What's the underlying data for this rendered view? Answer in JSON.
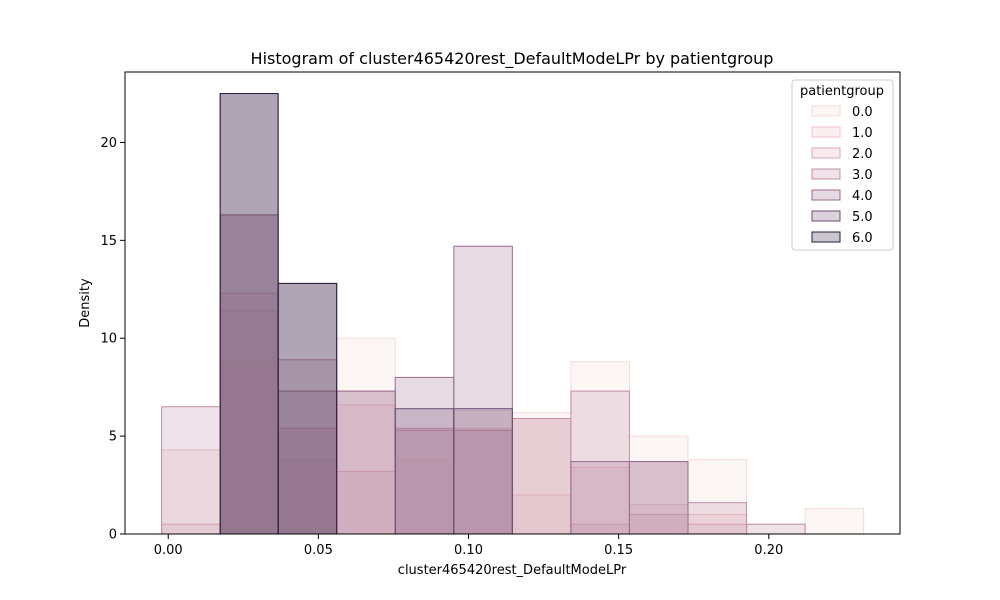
{
  "chart_data": {
    "type": "bar",
    "title": "Histogram of cluster465420rest_DefaultModeLPr by patientgroup",
    "xlabel": "cluster465420rest_DefaultModeLPr",
    "ylabel": "Density",
    "xlim": [
      -0.0144,
      0.2437
    ],
    "ylim": [
      0,
      23.6
    ],
    "xticks": [
      0.0,
      0.05,
      0.1,
      0.15,
      0.2
    ],
    "xtick_labels": [
      "0.00",
      "0.05",
      "0.10",
      "0.15",
      "0.20"
    ],
    "yticks": [
      0,
      5,
      10,
      15,
      20
    ],
    "ytick_labels": [
      "0",
      "5",
      "10",
      "15",
      "20"
    ],
    "legend": {
      "title": "patientgroup",
      "placement": "top-right"
    },
    "grid": false,
    "series": [
      {
        "name": "0.0",
        "color": "#f3dcd8",
        "bins": [
          [
            0.0173,
            0.0366,
            8.8
          ],
          [
            0.0366,
            0.0561,
            3.8
          ],
          [
            0.0561,
            0.0756,
            10.0
          ],
          [
            0.0756,
            0.0951,
            3.8
          ],
          [
            0.0951,
            0.1146,
            6.3
          ],
          [
            0.1146,
            0.1341,
            6.2
          ],
          [
            0.1341,
            0.1536,
            8.8
          ],
          [
            0.1536,
            0.1731,
            5.0
          ],
          [
            0.1731,
            0.1926,
            3.8
          ],
          [
            0.2121,
            0.2316,
            1.3
          ]
        ]
      },
      {
        "name": "1.0",
        "color": "#ecc5c6",
        "bins": [
          [
            -0.0022,
            0.0173,
            4.3
          ],
          [
            0.0173,
            0.0366,
            11.4
          ],
          [
            0.0366,
            0.0561,
            5.4
          ],
          [
            0.0561,
            0.0756,
            6.6
          ],
          [
            0.0756,
            0.0951,
            5.4
          ],
          [
            0.0951,
            0.1146,
            5.4
          ],
          [
            0.1146,
            0.1341,
            2.0
          ],
          [
            0.1341,
            0.1536,
            3.4
          ],
          [
            0.1536,
            0.1731,
            1.5
          ],
          [
            0.1731,
            0.1926,
            1.0
          ]
        ]
      },
      {
        "name": "2.0",
        "color": "#dcaab8",
        "bins": [
          [
            -0.0022,
            0.0173,
            0.5
          ],
          [
            0.0173,
            0.0366,
            12.3
          ],
          [
            0.0366,
            0.0561,
            5.4
          ],
          [
            0.0561,
            0.0756,
            3.2
          ],
          [
            0.0756,
            0.0951,
            5.4
          ],
          [
            0.0951,
            0.1146,
            5.3
          ],
          [
            0.1146,
            0.1341,
            5.9
          ],
          [
            0.1341,
            0.1536,
            0.5
          ],
          [
            0.1536,
            0.1731,
            1.0
          ],
          [
            0.1731,
            0.1926,
            0.5
          ]
        ]
      },
      {
        "name": "3.0",
        "color": "#c18fa9",
        "bins": [
          [
            -0.0022,
            0.0173,
            6.5
          ],
          [
            0.0173,
            0.0366,
            16.3
          ],
          [
            0.0366,
            0.0561,
            8.9
          ],
          [
            0.0561,
            0.0756,
            7.3
          ],
          [
            0.0756,
            0.0951,
            5.3
          ],
          [
            0.0951,
            0.1146,
            5.3
          ],
          [
            0.1146,
            0.1341,
            5.9
          ],
          [
            0.1341,
            0.1536,
            7.3
          ],
          [
            0.1536,
            0.1731,
            3.7
          ],
          [
            0.1731,
            0.1926,
            1.6
          ],
          [
            0.1926,
            0.2121,
            0.5
          ]
        ]
      },
      {
        "name": "4.0",
        "color": "#9c6c8f",
        "bins": [
          [
            0.0173,
            0.0366,
            16.3
          ],
          [
            0.0366,
            0.0561,
            7.3
          ],
          [
            0.0561,
            0.0756,
            7.3
          ],
          [
            0.0756,
            0.0951,
            8.0
          ],
          [
            0.0951,
            0.1146,
            14.7
          ],
          [
            0.1341,
            0.1536,
            3.7
          ],
          [
            0.1536,
            0.1731,
            3.7
          ]
        ]
      },
      {
        "name": "5.0",
        "color": "#6e4a71",
        "bins": [
          [
            0.0173,
            0.0366,
            22.5
          ],
          [
            0.0366,
            0.0561,
            12.8
          ],
          [
            0.0756,
            0.0951,
            6.4
          ],
          [
            0.0951,
            0.1146,
            6.4
          ]
        ]
      },
      {
        "name": "6.0",
        "color": "#2d1e3e",
        "bins": [
          [
            0.0173,
            0.0366,
            22.5
          ],
          [
            0.0366,
            0.0561,
            12.8
          ]
        ]
      }
    ]
  }
}
